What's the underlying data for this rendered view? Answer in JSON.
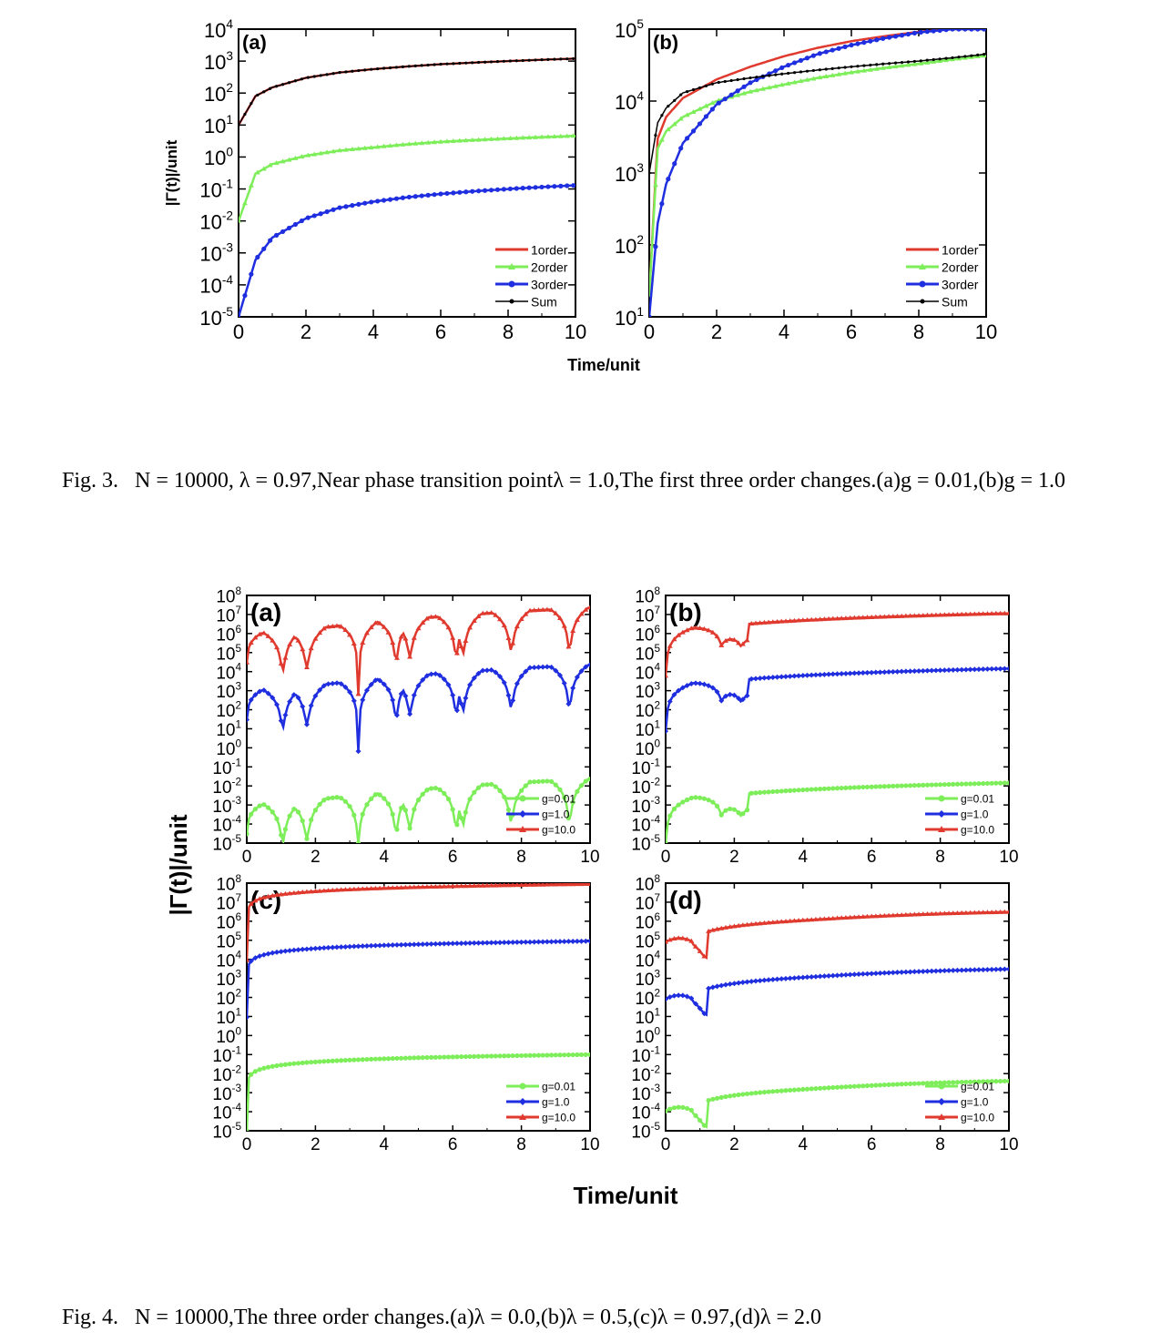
{
  "figure3": {
    "ylabel": "|Γ(t)|/unit",
    "xlabel": "Time/unit",
    "caption": {
      "prefix": "Fig. 3.",
      "text": "N = 10000, λ = 0.97,Near phase transition pointλ = 1.0,The first three order changes.(a)g = 0.01,(b)g = 1.0"
    }
  },
  "figure4": {
    "ylabel": "|Γ(t)|/unit",
    "xlabel": "Time/unit",
    "caption": {
      "prefix": "Fig. 4.",
      "text": "N = 10000,The three order changes.(a)λ = 0.0,(b)λ = 0.5,(c)λ = 0.97,(d)λ = 2.0"
    }
  },
  "colors": {
    "order1": "#e03a2f",
    "order2": "#7dee5a",
    "order3": "#1f2fe0",
    "sum": "#000000"
  },
  "chart_data": [
    {
      "panel": "3a",
      "type": "line",
      "scale": "log",
      "xlim": [
        0,
        10
      ],
      "ylim": [
        1e-05,
        10000.0
      ],
      "x": [
        0,
        0.5,
        1,
        2,
        3,
        4,
        5,
        6,
        7,
        8,
        9,
        10
      ],
      "series": [
        {
          "name": "1order",
          "values": [
            10,
            80,
            150,
            300,
            440,
            560,
            680,
            800,
            900,
            1000,
            1100,
            1200
          ]
        },
        {
          "name": "2order",
          "values": [
            0.01,
            0.3,
            0.6,
            1.1,
            1.6,
            2.0,
            2.5,
            3.0,
            3.4,
            3.8,
            4.2,
            4.6
          ]
        },
        {
          "name": "3order",
          "values": [
            1e-05,
            0.0006,
            0.003,
            0.012,
            0.026,
            0.04,
            0.055,
            0.07,
            0.085,
            0.1,
            0.115,
            0.13
          ]
        },
        {
          "name": "Sum",
          "values": [
            10,
            80,
            150,
            300,
            440,
            560,
            680,
            800,
            900,
            1000,
            1100,
            1200
          ]
        }
      ],
      "xticks": [
        "0",
        "2",
        "4",
        "6",
        "8",
        "10"
      ],
      "yticks": [
        "10-5",
        "10-4",
        "10-3",
        "10-2",
        "10-1",
        "100",
        "101",
        "102",
        "103",
        "104"
      ],
      "label": "(a)",
      "legend": "bottom-right"
    },
    {
      "panel": "3b",
      "type": "line",
      "scale": "log",
      "xlim": [
        0,
        10
      ],
      "ylim": [
        10,
        100000
      ],
      "x": [
        0,
        0.25,
        0.5,
        1,
        2,
        3,
        4,
        5,
        6,
        7,
        8,
        9,
        10
      ],
      "series": [
        {
          "name": "1order",
          "values": [
            20,
            3000,
            6000,
            11000,
            20000,
            30000,
            42000,
            55000,
            68000,
            80000,
            92000,
            100000,
            100000
          ]
        },
        {
          "name": "2order",
          "values": [
            20,
            2200,
            3800,
            6000,
            10000,
            13500,
            17000,
            21000,
            25000,
            29000,
            33000,
            38000,
            43000
          ]
        },
        {
          "name": "3order",
          "values": [
            10,
            200,
            700,
            2600,
            9000,
            18000,
            30000,
            45000,
            60000,
            75000,
            90000,
            100000,
            100000
          ]
        },
        {
          "name": "Sum",
          "values": [
            1000,
            5000,
            8000,
            13000,
            18000,
            21000,
            24000,
            27000,
            30000,
            33000,
            36000,
            40000,
            45000
          ]
        }
      ],
      "xticks": [
        "0",
        "2",
        "4",
        "6",
        "8",
        "10"
      ],
      "yticks": [
        "101",
        "102",
        "103",
        "104",
        "105"
      ],
      "label": "(b)",
      "legend": "bottom-right"
    },
    {
      "panel": "4a",
      "type": "line",
      "scale": "log",
      "xlim": [
        0,
        10
      ],
      "ylim": [
        1e-05,
        100000000.0
      ],
      "label": "(a)",
      "legend": "bottom-right",
      "xticks": [
        "0",
        "2",
        "4",
        "6",
        "8",
        "10"
      ],
      "yticks": [
        "10-5",
        "10-4",
        "10-3",
        "10-2",
        "10-1",
        "100",
        "101",
        "102",
        "103",
        "104",
        "105",
        "106",
        "107",
        "108"
      ],
      "series": [
        {
          "name": "g=0.01",
          "peak": 0.001,
          "x_peaks": [
            0.8,
            1.75,
            2.5,
            3.9,
            5.1,
            5.7,
            6.9,
            8.6
          ],
          "x_dips": [
            1.05,
            1.75,
            3.25,
            4.35,
            4.75,
            6.1,
            6.3,
            7.7,
            9.4
          ]
        },
        {
          "name": "g=1.0",
          "peak": 1000
        },
        {
          "name": "g=10.0",
          "peak": 1000000
        }
      ]
    },
    {
      "panel": "4b",
      "type": "line",
      "scale": "log",
      "xlim": [
        0,
        10
      ],
      "ylim": [
        1e-05,
        100000000.0
      ],
      "label": "(b)",
      "legend": "bottom-right",
      "xticks": [
        "0",
        "2",
        "4",
        "6",
        "8",
        "10"
      ],
      "yticks": [
        "10-5",
        "10-4",
        "10-3",
        "10-2",
        "10-1",
        "100",
        "101",
        "102",
        "103",
        "104",
        "105",
        "106",
        "107",
        "108"
      ],
      "series": [
        {
          "name": "g=0.01",
          "end": 0.015
        },
        {
          "name": "g=1.0",
          "end": 15000
        },
        {
          "name": "g=10.0",
          "end": 12000000
        }
      ]
    },
    {
      "panel": "4c",
      "type": "line",
      "scale": "log",
      "xlim": [
        0,
        10
      ],
      "ylim": [
        1e-05,
        100000000.0
      ],
      "label": "(c)",
      "legend": "bottom-right",
      "xticks": [
        "0",
        "2",
        "4",
        "6",
        "8",
        "10"
      ],
      "yticks": [
        "10-5",
        "10-4",
        "10-3",
        "10-2",
        "10-1",
        "100",
        "101",
        "102",
        "103",
        "104",
        "105",
        "106",
        "107",
        "108"
      ],
      "series": [
        {
          "name": "g=0.01",
          "end": 0.1
        },
        {
          "name": "g=1.0",
          "end": 90000
        },
        {
          "name": "g=10.0",
          "end": 90000000
        }
      ]
    },
    {
      "panel": "4d",
      "type": "line",
      "scale": "log",
      "xlim": [
        0,
        10
      ],
      "ylim": [
        1e-05,
        100000000.0
      ],
      "label": "(d)",
      "legend": "bottom-right",
      "xticks": [
        "0",
        "2",
        "4",
        "6",
        "8",
        "10"
      ],
      "yticks": [
        "10-5",
        "10-4",
        "10-3",
        "10-2",
        "10-1",
        "100",
        "101",
        "102",
        "103",
        "104",
        "105",
        "106",
        "107",
        "108"
      ],
      "series": [
        {
          "name": "g=0.01",
          "end": 0.004
        },
        {
          "name": "g=1.0",
          "end": 3000
        },
        {
          "name": "g=10.0",
          "end": 3000000
        }
      ]
    }
  ]
}
